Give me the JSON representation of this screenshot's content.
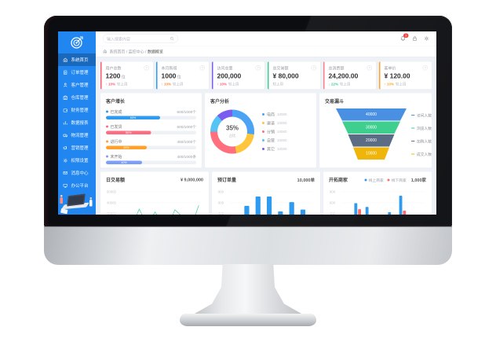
{
  "header": {
    "search_placeholder": "输入搜索内容",
    "badge_count": "3"
  },
  "breadcrumb": {
    "segments": [
      "系统首页",
      "监控中心",
      "数据概览"
    ]
  },
  "sidebar": {
    "items": [
      {
        "label": "系统首页",
        "icon": "home",
        "active": true
      },
      {
        "label": "订单管理",
        "icon": "order",
        "active": false
      },
      {
        "label": "客户管理",
        "icon": "customer",
        "active": false
      },
      {
        "label": "仓库管理",
        "icon": "warehouse",
        "active": false
      },
      {
        "label": "财务管理",
        "icon": "finance",
        "active": false
      },
      {
        "label": "数据报表",
        "icon": "report",
        "active": false
      },
      {
        "label": "物流管理",
        "icon": "logistics",
        "active": false
      },
      {
        "label": "营销管理",
        "icon": "marketing",
        "active": false
      },
      {
        "label": "权限设置",
        "icon": "settings",
        "active": false
      },
      {
        "label": "消息中心",
        "icon": "message",
        "active": false
      },
      {
        "label": "办公平台",
        "icon": "office",
        "active": false
      }
    ]
  },
  "kpis": [
    {
      "title": "用户总数",
      "value": "1200",
      "unit": "位",
      "delta": "↑ 10%",
      "delta_color": "#ff5b6e",
      "note": "较上周",
      "accent": "#ff5b6e"
    },
    {
      "title": "本月新增",
      "value": "1000",
      "unit": "位",
      "delta": "↑ 10%",
      "delta_color": "#ff8a3c",
      "note": "较上周",
      "accent": "#2e9bf0"
    },
    {
      "title": "访问总量",
      "value": "200,000",
      "unit": "",
      "delta": "↑ 10%",
      "delta_color": "#ff5b6e",
      "note": "较上周",
      "accent": "#7a5cf0"
    },
    {
      "title": "总交易额",
      "value": "¥ 80,000",
      "unit": "",
      "delta": "",
      "delta_color": "#b3b8bf",
      "note": "较上周",
      "accent": "#3ecf8e"
    },
    {
      "title": "总消费额",
      "value": "24,200.00",
      "unit": "",
      "delta": "↓ 22%",
      "delta_color": "#3ecf8e",
      "note": "较上周",
      "accent": "#ff7d8a"
    },
    {
      "title": "客单价",
      "value": "¥ 120.00",
      "unit": "",
      "delta": "↑ 10%",
      "delta_color": "#ffa22b",
      "note": "较上周",
      "accent": "#ffa22b"
    }
  ],
  "growth_panel": {
    "title": "客户增长",
    "rows": [
      {
        "label": "已完成",
        "value": "600/1000个",
        "pct": 60,
        "pct_label": "60%",
        "color": "#2e9bf0"
      },
      {
        "label": "已发货",
        "value": "500/1000个",
        "pct": 50,
        "pct_label": "50%",
        "color": "#ff6b81"
      },
      {
        "label": "进行中",
        "value": "450/1000个",
        "pct": 45,
        "pct_label": "45%",
        "color": "#ffa22b"
      },
      {
        "label": "未开始",
        "value": "400/1000条",
        "pct": 40,
        "pct_label": "40%",
        "color": "#7c9ef8"
      }
    ]
  },
  "donut_panel": {
    "title": "客户分析",
    "center_value": "35%",
    "center_label": "占比",
    "segments": [
      {
        "label": "电商",
        "value": "10000",
        "pct": 27,
        "color": "#4aa3f5"
      },
      {
        "label": "渠道",
        "value": "10000",
        "pct": 20,
        "color": "#ffc53d"
      },
      {
        "label": "分销",
        "value": "10000",
        "pct": 28,
        "color": "#ff6f7d"
      },
      {
        "label": "自营",
        "value": "10000",
        "pct": 13,
        "color": "#55c4f5"
      },
      {
        "label": "其它",
        "value": "10000",
        "pct": 12,
        "color": "#7a5cf0"
      }
    ]
  },
  "funnel_panel": {
    "title": "交易漏斗",
    "segments": [
      {
        "value": "40000",
        "label": "访问人数",
        "color": "#4a90e2"
      },
      {
        "value": "30000",
        "label": "浏览人数",
        "color": "#3ecf8e"
      },
      {
        "value": "20000",
        "label": "加购人数",
        "color": "#5a6d85"
      },
      {
        "value": "10000",
        "label": "成交人数",
        "color": "#f0b50a"
      }
    ]
  },
  "charts": {
    "daily": {
      "type": "line",
      "title": "日交易额",
      "metric": "¥ 9,000,000",
      "yticks": [
        "50000",
        "40000",
        "30000"
      ],
      "values": [
        28,
        26,
        29,
        25,
        27,
        39,
        28,
        24,
        27,
        35,
        26,
        24,
        28,
        26,
        38,
        33,
        28,
        26,
        31,
        29,
        44
      ],
      "color": "#3ecf8e"
    },
    "orders": {
      "type": "bar",
      "title": "预订单量",
      "metric": "10,000单",
      "yticks": [
        "900",
        "600",
        "300"
      ],
      "values": [
        300,
        550,
        800,
        800,
        400,
        650,
        450
      ],
      "color": "#2e9bf0"
    },
    "merchants": {
      "type": "grouped-bar",
      "title": "开拓商家",
      "metric": "1,000家",
      "yticks": [
        "900",
        "600",
        "300"
      ],
      "legend": [
        {
          "label": "线上商家",
          "color": "#2e9bf0"
        },
        {
          "label": "线下商家",
          "color": "#ff6b6b"
        }
      ],
      "series_a": [
        100,
        620,
        520,
        180,
        380,
        820,
        300
      ],
      "series_b": [
        210,
        460,
        200,
        240,
        280,
        420,
        120
      ]
    }
  }
}
